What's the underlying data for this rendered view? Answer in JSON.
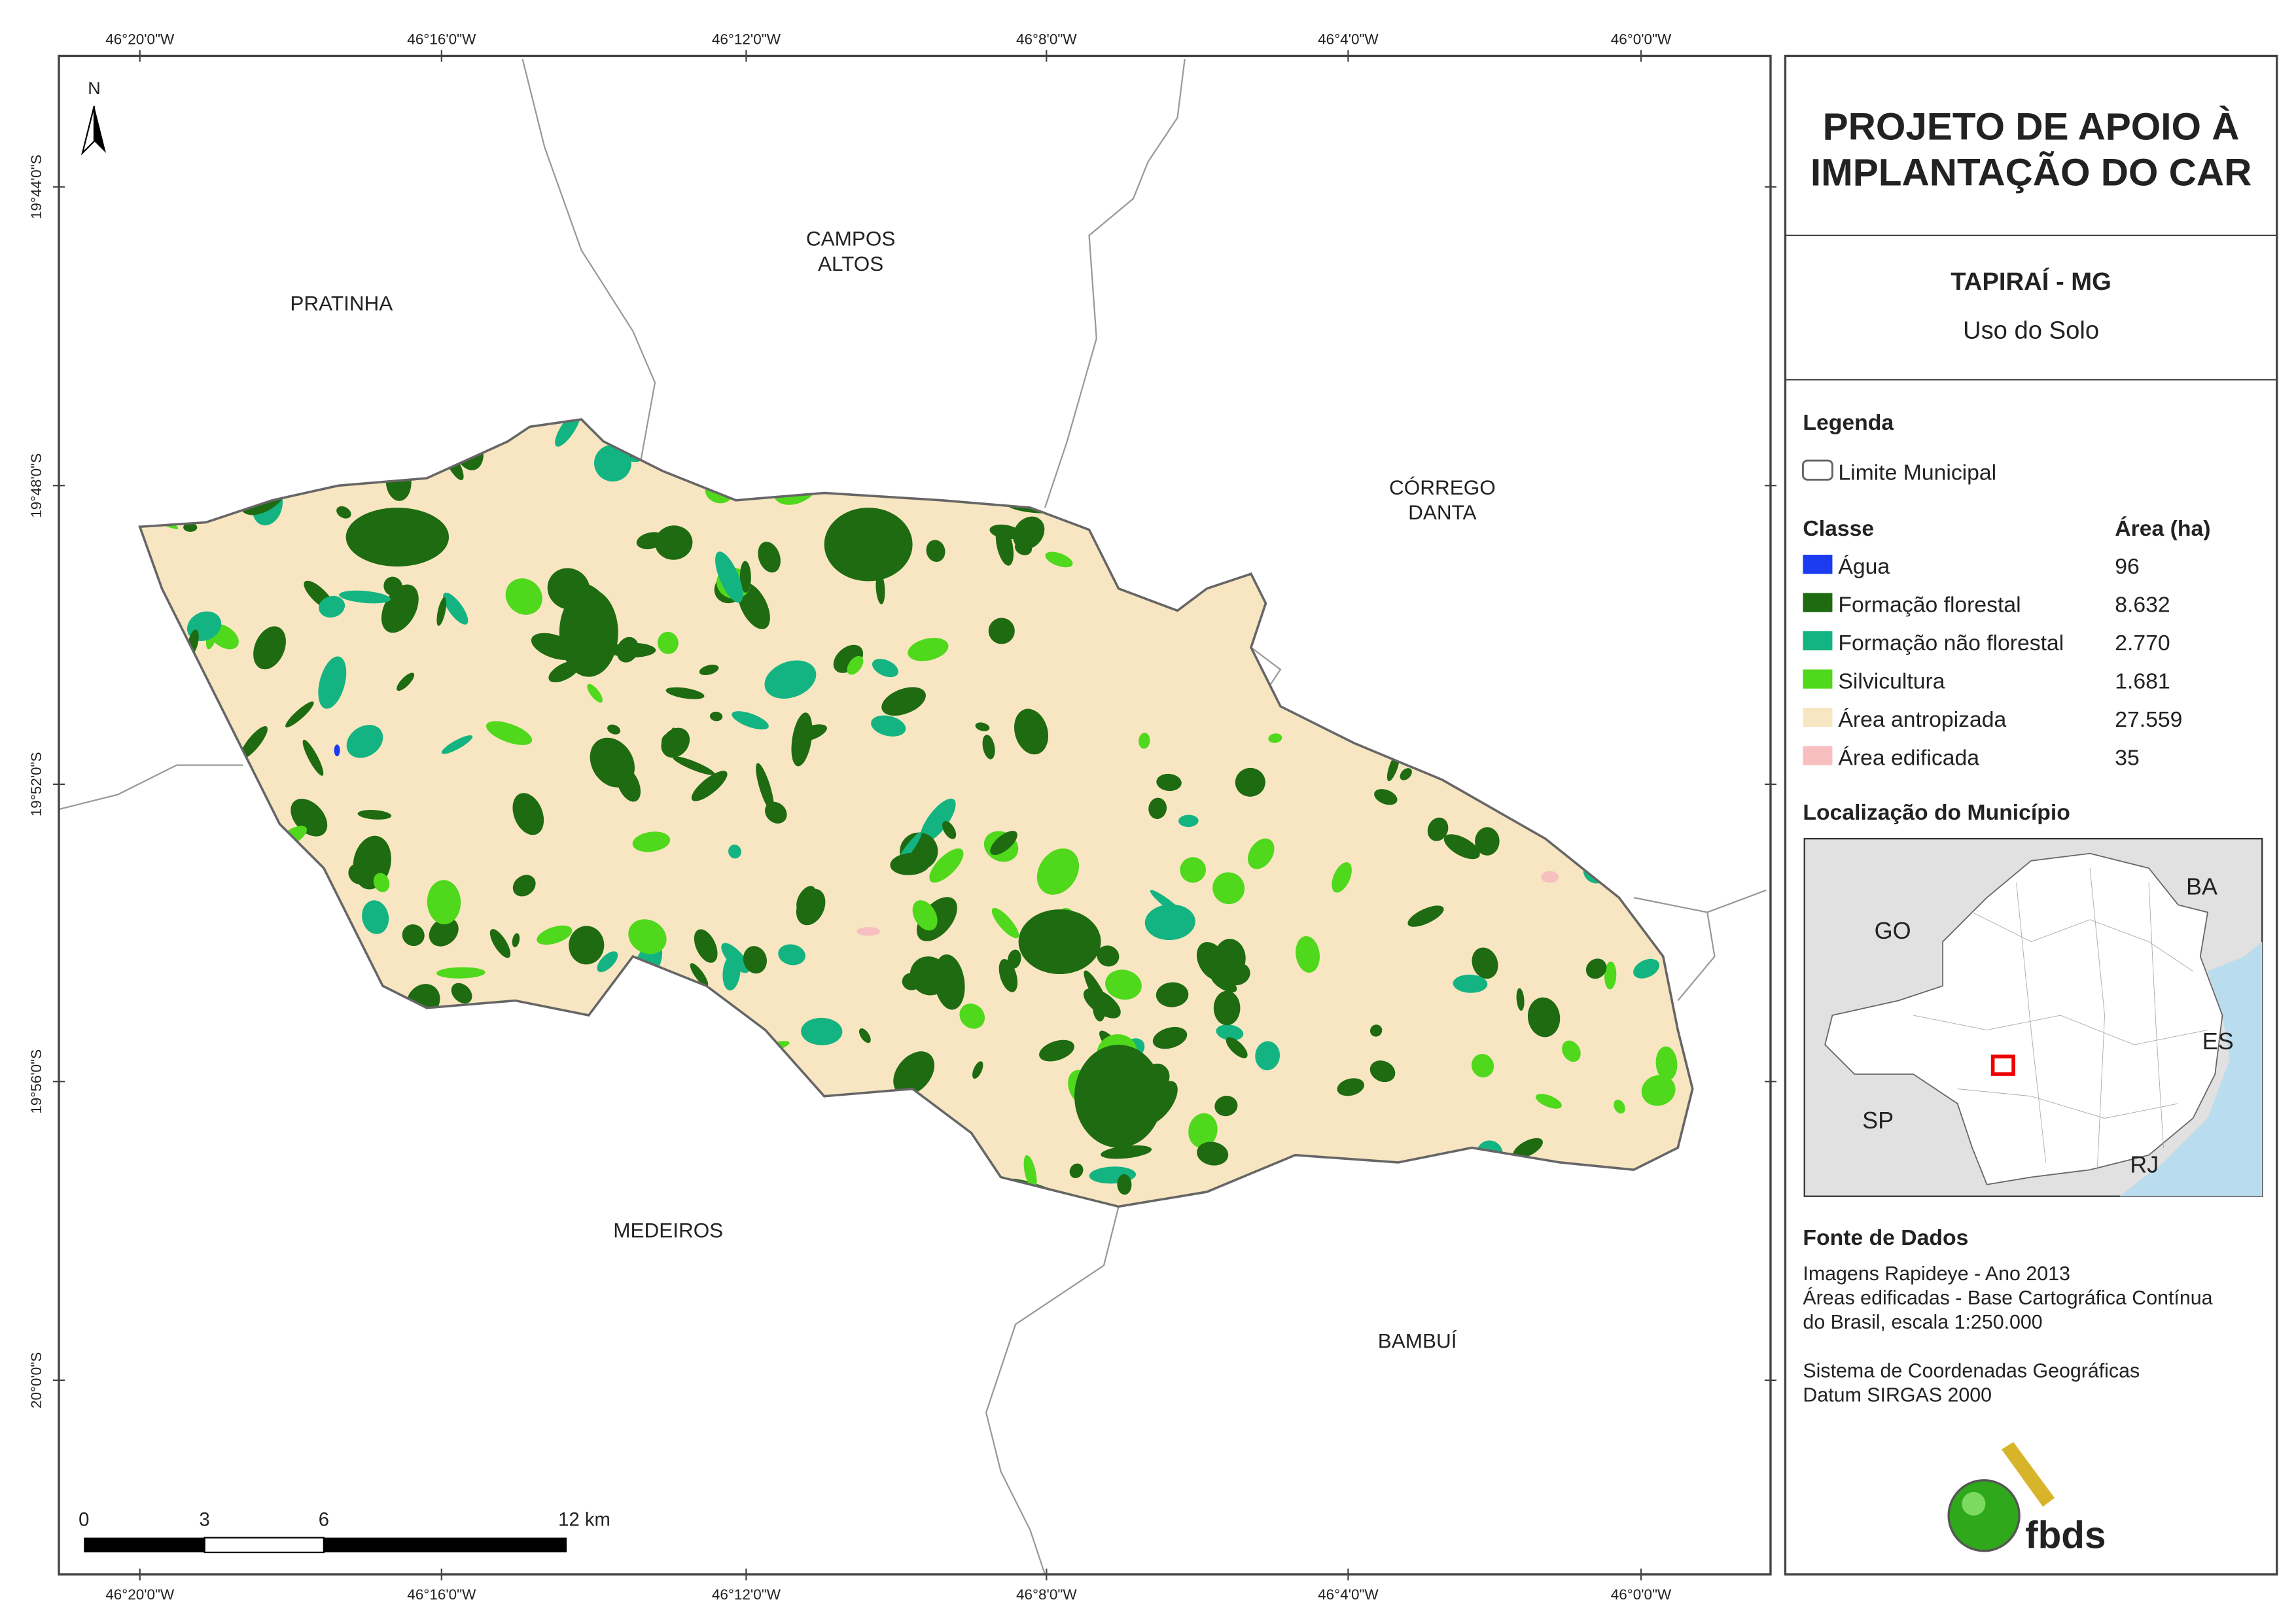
{
  "map": {
    "longitudes": [
      "46°20'0\"W",
      "46°16'0\"W",
      "46°12'0\"W",
      "46°8'0\"W",
      "46°4'0\"W",
      "46°0'0\"W"
    ],
    "latitudes": [
      "19°44'0\"S",
      "19°48'0\"S",
      "19°52'0\"S",
      "19°56'0\"S",
      "20°0'0\"S"
    ],
    "north": "N",
    "places": [
      {
        "lines": [
          "PRATINHA"
        ]
      },
      {
        "lines": [
          "CAMPOS",
          "ALTOS"
        ]
      },
      {
        "lines": [
          "CÓRREGO",
          "DANTA"
        ]
      },
      {
        "lines": [
          "MEDEIROS"
        ]
      },
      {
        "lines": [
          "BAMBUÍ"
        ]
      }
    ],
    "scale_bar": [
      "0",
      "3",
      "6",
      "12 km"
    ]
  },
  "panel": {
    "title": [
      "PROJETO DE APOIO À",
      "IMPLANTAÇÃO DO CAR"
    ],
    "municipality": "TAPIRAÍ - MG",
    "subtitle": "Uso do Solo",
    "legend": {
      "heading": "Legenda",
      "boundary": "Limite Municipal",
      "class_header": "Classe",
      "area_header": "Área (ha)",
      "rows": [
        {
          "label": "Água",
          "area": "96",
          "color": "#1b3cf0"
        },
        {
          "label": "Formação florestal",
          "area": "8.632",
          "color": "#1e6b12"
        },
        {
          "label": "Formação não florestal",
          "area": "2.770",
          "color": "#14b482"
        },
        {
          "label": "Silvicultura",
          "area": "1.681",
          "color": "#4fd81c"
        },
        {
          "label": "Área antropizada",
          "area": "27.559",
          "color": "#f8e6c2"
        },
        {
          "label": "Área edificada",
          "area": "35",
          "color": "#f7bfc0"
        }
      ]
    },
    "location": {
      "heading": "Localização do Município",
      "labels": [
        "BA",
        "GO",
        "ES",
        "SP",
        "RJ"
      ]
    },
    "sources": {
      "heading": "Fonte de Dados",
      "lines": [
        "Imagens Rapideye - Ano 2013",
        "Áreas edificadas - Base Cartográfica Contínua",
        "do Brasil, escala 1:250.000",
        "",
        "Sistema de Coordenadas Geográficas",
        "Datum SIRGAS 2000"
      ]
    },
    "logo": "fbds"
  }
}
